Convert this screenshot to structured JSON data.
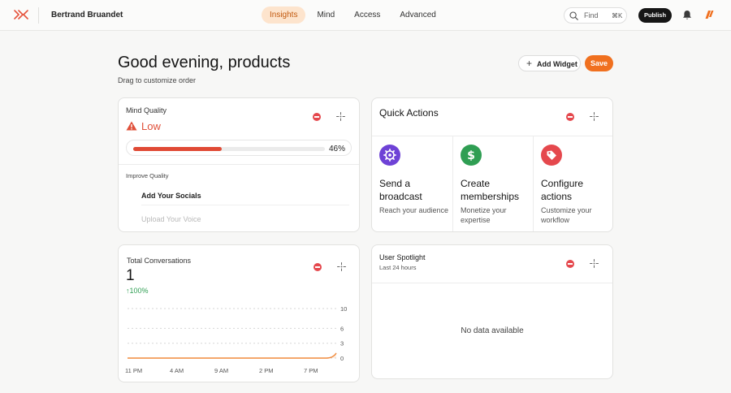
{
  "topbar": {
    "user_name": "Bertrand Bruandet",
    "nav": [
      {
        "label": "Insights",
        "active": true
      },
      {
        "label": "Mind",
        "active": false
      },
      {
        "label": "Access",
        "active": false
      },
      {
        "label": "Advanced",
        "active": false
      }
    ],
    "search": {
      "label": "Find",
      "shortcut": "⌘K"
    },
    "publish_label": "Publish",
    "colors": {
      "accent": "#f0701f",
      "active_nav_bg": "#fde4cd",
      "brand_logo": "#e5533c"
    }
  },
  "header": {
    "title": "Good evening, products",
    "subtitle": "Drag to customize order",
    "add_widget_label": "Add Widget",
    "save_label": "Save"
  },
  "mind_quality": {
    "title": "Mind Quality",
    "status": "Low",
    "progress_percent": 46,
    "progress_label": "46%",
    "improve_label": "Improve Quality",
    "improve_items": [
      "Add Your Socials",
      "Upload Your Voice"
    ]
  },
  "quick_actions": {
    "title": "Quick Actions",
    "actions": [
      {
        "title": "Send a broadcast",
        "description": "Reach your audience",
        "icon": "broadcast-gear-icon",
        "color": "#6e42d6"
      },
      {
        "title": "Create memberships",
        "description": "Monetize your expertise",
        "icon": "dollar-icon",
        "color": "#2f9e53"
      },
      {
        "title": "Configure actions",
        "description": "Customize your workflow",
        "icon": "tag-icon",
        "color": "#e5484d"
      }
    ]
  },
  "total_conversations": {
    "title": "Total Conversations",
    "value": "1",
    "change": "100%",
    "chart_data": {
      "type": "area",
      "x": [
        "11 PM",
        "4 AM",
        "9 AM",
        "2 PM",
        "7 PM"
      ],
      "x_ticks": [
        "11 PM",
        "4 AM",
        "9 AM",
        "2 PM",
        "7 PM"
      ],
      "y_ticks": [
        10,
        6,
        3,
        0
      ],
      "ylim": [
        0,
        10
      ],
      "series": [
        {
          "values": [
            0,
            0,
            0,
            0,
            1
          ]
        }
      ],
      "color": "#f08a3c",
      "grid": true
    }
  },
  "user_spotlight": {
    "title": "User Spotlight",
    "subtitle": "Last 24 hours",
    "empty_text": "No data available"
  }
}
